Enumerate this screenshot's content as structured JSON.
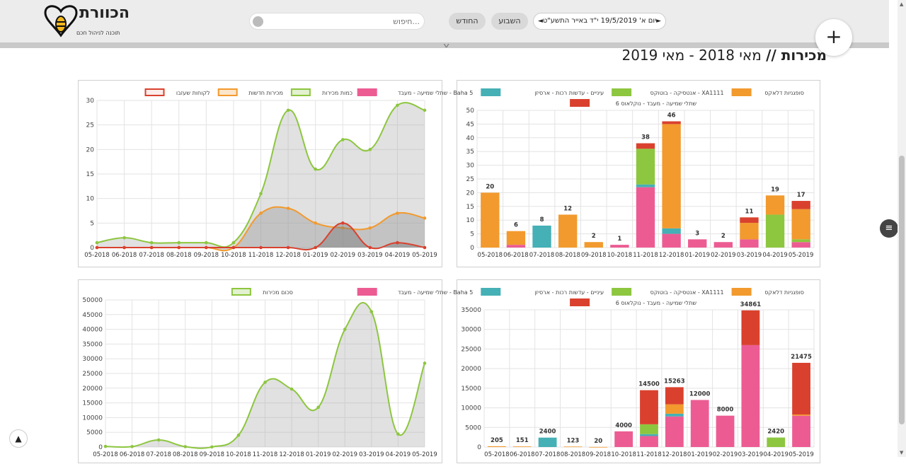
{
  "header": {
    "brand": "הכוורת",
    "tagline": "תוכנה לניהול חכם",
    "search_placeholder": "חיפוש...",
    "btn_month": "החודש",
    "btn_week": "השבוע",
    "date_label": "יום א' 19/5/2019 י\"ד באייר התשע\"ט",
    "prev_arrow": "◄",
    "next_arrow": "►",
    "plus": "+"
  },
  "page_title": {
    "main": "מכירות //",
    "range": "מאי 2018 - מאי 2019"
  },
  "months": [
    "05-2018",
    "06-2018",
    "07-2018",
    "08-2018",
    "09-2018",
    "10-2018",
    "11-2018",
    "12-2018",
    "01-2019",
    "02-2019",
    "03-2019",
    "04-2019",
    "05-2019"
  ],
  "colors": {
    "green": "#8dc63f",
    "orange": "#f29a2e",
    "red": "#d9412e",
    "pink": "#ec5c93",
    "teal": "#45b0b5",
    "grid": "#e3e3e3"
  },
  "chart_data": [
    {
      "type": "area",
      "id": "customers",
      "legend": [
        "כמות מכירות",
        "מכירות חדשות",
        "לקוחות שעזבו"
      ],
      "ylim": [
        0,
        30
      ],
      "yticks": [
        0,
        5,
        10,
        15,
        20,
        25,
        30
      ],
      "series": [
        {
          "name": "כמות מכירות",
          "values": [
            1,
            2,
            1,
            1,
            1,
            1,
            11,
            28,
            16,
            22,
            20,
            29,
            28
          ]
        },
        {
          "name": "מכירות חדשות",
          "values": [
            0,
            0,
            0,
            0,
            0,
            0,
            7,
            8,
            5,
            4,
            4,
            7,
            6
          ]
        },
        {
          "name": "לקוחות שעזבו",
          "values": [
            0,
            0,
            0,
            0,
            0,
            0,
            0,
            0,
            0,
            5,
            0,
            1,
            0
          ]
        }
      ]
    },
    {
      "type": "bar",
      "id": "products_count",
      "legend": [
        "סופגניות דלאקס",
        "אנטסיקה - בוטוקס - XA1111",
        "עיניים - עדשות רכות - ארסיזן",
        "שתלי שמיעה - מעבד - Baha 5",
        "שתלי שמיעה - מעבד - נוקלאוס 6"
      ],
      "ylim": [
        0,
        50
      ],
      "yticks": [
        0,
        5,
        10,
        15,
        20,
        25,
        30,
        35,
        40,
        45,
        50
      ],
      "totals": [
        20,
        6,
        8,
        12,
        2,
        1,
        38,
        46,
        3,
        2,
        11,
        19,
        17
      ],
      "series": [
        {
          "name": "שתלי שמיעה - מעבד - Baha 5",
          "values": [
            0,
            1,
            0,
            0,
            0,
            1,
            22,
            5,
            3,
            2,
            3,
            0,
            2
          ]
        },
        {
          "name": "עיניים - עדשות רכות - ארסיזן",
          "values": [
            0,
            0,
            8,
            0,
            0,
            0,
            1,
            2,
            0,
            0,
            0,
            0,
            0
          ]
        },
        {
          "name": "אנטסיקה - בוטוקס - XA1111",
          "values": [
            0,
            0,
            0,
            0,
            0,
            0,
            13,
            0,
            0,
            0,
            0,
            12,
            1
          ]
        },
        {
          "name": "סופגניות דלאקס",
          "values": [
            20,
            5,
            0,
            12,
            2,
            0,
            0,
            38,
            0,
            0,
            6,
            7,
            11
          ]
        },
        {
          "name": "שתלי שמיעה - מעבד - נוקלאוס 6",
          "values": [
            0,
            0,
            0,
            0,
            0,
            0,
            2,
            1,
            0,
            0,
            2,
            0,
            3
          ]
        }
      ]
    },
    {
      "type": "area",
      "id": "sales_sum",
      "legend": [
        "סכום מכירות"
      ],
      "ylim": [
        0,
        50000
      ],
      "yticks": [
        0,
        5000,
        10000,
        15000,
        20000,
        25000,
        30000,
        35000,
        40000,
        45000,
        50000
      ],
      "series": [
        {
          "name": "סכום מכירות",
          "values": [
            205,
            151,
            2400,
            123,
            20,
            4000,
            22000,
            19700,
            13500,
            40000,
            46000,
            4400,
            28500
          ]
        }
      ]
    },
    {
      "type": "bar",
      "id": "products_sum",
      "legend": [
        "סופגניות דלאקס",
        "אנטסיקה - בוטוקס - XA1111",
        "עיניים - עדשות רכות - ארסיזן",
        "שתלי שמיעה - מעבד - Baha 5",
        "שתלי שמיעה - מעבד - נוקלאוס 6"
      ],
      "ylim": [
        0,
        35000
      ],
      "yticks": [
        0,
        5000,
        10000,
        15000,
        20000,
        25000,
        30000,
        35000
      ],
      "totals": [
        205,
        151,
        2400,
        123,
        20,
        4000,
        14500,
        15263,
        12000,
        8000,
        34861,
        2420,
        21475
      ],
      "series": [
        {
          "name": "שתלי שמיעה - מעבד - Baha 5",
          "values": [
            0,
            0,
            0,
            0,
            0,
            4000,
            2800,
            7800,
            12000,
            8000,
            26000,
            0,
            8000
          ]
        },
        {
          "name": "עיניים - עדשות רכות - ארסיזן",
          "values": [
            0,
            0,
            2400,
            0,
            0,
            0,
            500,
            700,
            0,
            0,
            0,
            0,
            0
          ]
        },
        {
          "name": "אנטסיקה - בוטוקס - XA1111",
          "values": [
            0,
            0,
            0,
            0,
            0,
            0,
            2500,
            0,
            0,
            0,
            0,
            2420,
            0
          ]
        },
        {
          "name": "סופגניות דלאקס",
          "values": [
            205,
            151,
            0,
            123,
            20,
            0,
            0,
            2400,
            0,
            0,
            0,
            0,
            300
          ]
        },
        {
          "name": "שתלי שמיעה - מעבד - נוקלאוס 6",
          "values": [
            0,
            0,
            0,
            0,
            0,
            0,
            8700,
            4363,
            0,
            0,
            8861,
            0,
            13175
          ]
        }
      ]
    }
  ]
}
